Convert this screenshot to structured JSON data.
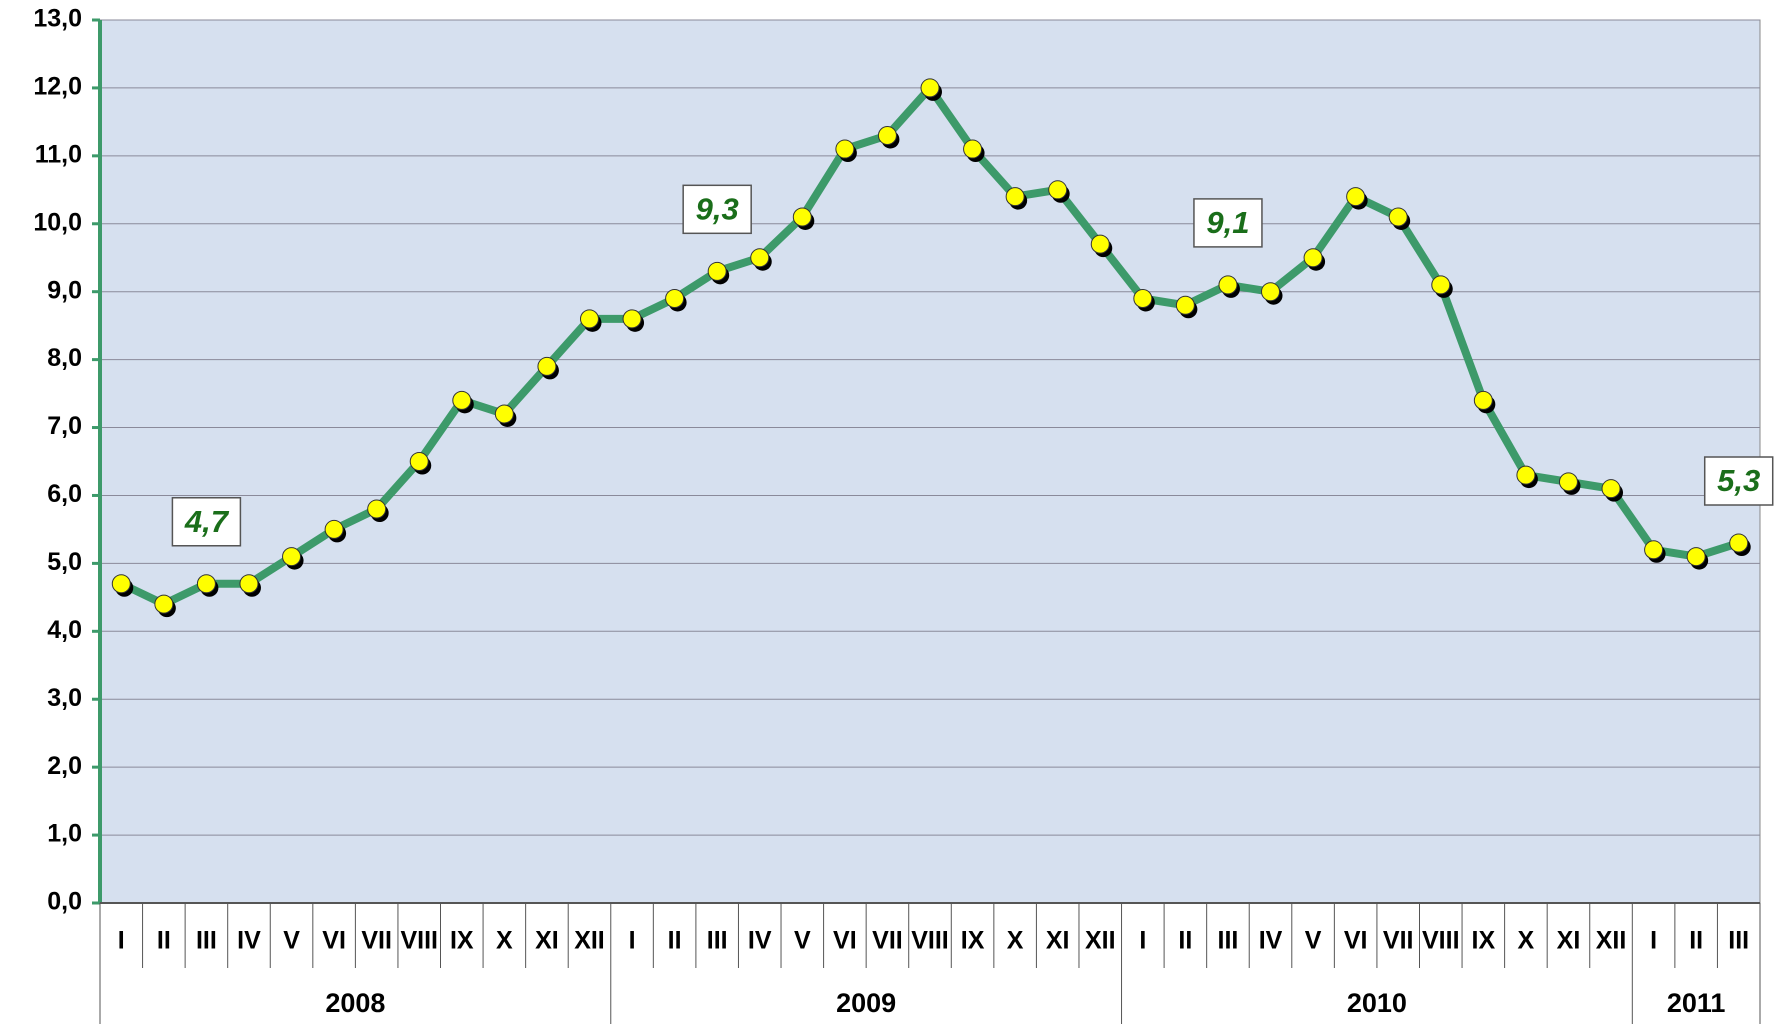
{
  "chart_data": {
    "type": "line",
    "categories": [
      "I",
      "II",
      "III",
      "IV",
      "V",
      "VI",
      "VII",
      "VIII",
      "IX",
      "X",
      "XI",
      "XII",
      "I",
      "II",
      "III",
      "IV",
      "V",
      "VI",
      "VII",
      "VIII",
      "IX",
      "X",
      "XI",
      "XII",
      "I",
      "II",
      "III",
      "IV",
      "V",
      "VI",
      "VII",
      "VIII",
      "IX",
      "X",
      "XI",
      "XII",
      "I",
      "II",
      "III"
    ],
    "year_groups": [
      {
        "label": "2008",
        "span": 12
      },
      {
        "label": "2009",
        "span": 12
      },
      {
        "label": "2010",
        "span": 12
      },
      {
        "label": "2011",
        "span": 3
      }
    ],
    "series": [
      {
        "color": "#3d9a6a",
        "marker_color": "#ffff00",
        "values": [
          4.7,
          4.4,
          4.7,
          4.7,
          5.1,
          5.5,
          5.8,
          6.5,
          7.4,
          7.2,
          7.9,
          8.6,
          8.6,
          8.9,
          9.3,
          9.5,
          10.1,
          11.1,
          11.3,
          12.0,
          11.1,
          10.4,
          10.5,
          9.7,
          8.9,
          8.8,
          9.1,
          9.0,
          9.5,
          10.4,
          10.1,
          9.1,
          7.4,
          6.3,
          6.2,
          6.1,
          5.2,
          5.1,
          5.3
        ],
        "value_labels": [
          null,
          null,
          "4,7",
          null,
          null,
          null,
          null,
          null,
          null,
          null,
          null,
          null,
          null,
          null,
          "9,3",
          null,
          null,
          null,
          null,
          null,
          null,
          null,
          null,
          null,
          null,
          null,
          "9,1",
          null,
          null,
          null,
          null,
          null,
          null,
          null,
          null,
          null,
          null,
          null,
          "5,3"
        ]
      }
    ],
    "ylim": [
      0,
      13
    ],
    "yticks": [
      {
        "value": 0,
        "label": "0,0"
      },
      {
        "value": 1,
        "label": "1,0"
      },
      {
        "value": 2,
        "label": "2,0"
      },
      {
        "value": 3,
        "label": "3,0"
      },
      {
        "value": 4,
        "label": "4,0"
      },
      {
        "value": 5,
        "label": "5,0"
      },
      {
        "value": 6,
        "label": "6,0"
      },
      {
        "value": 7,
        "label": "7,0"
      },
      {
        "value": 8,
        "label": "8,0"
      },
      {
        "value": 9,
        "label": "9,0"
      },
      {
        "value": 10,
        "label": "10,0"
      },
      {
        "value": 11,
        "label": "11,0"
      },
      {
        "value": 12,
        "label": "12,0"
      },
      {
        "value": 13,
        "label": "13,0"
      }
    ],
    "grid": true,
    "plot_background": "#d6e0ef"
  }
}
